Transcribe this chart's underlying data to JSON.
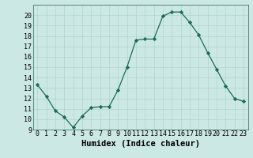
{
  "x": [
    0,
    1,
    2,
    3,
    4,
    5,
    6,
    7,
    8,
    9,
    10,
    11,
    12,
    13,
    14,
    15,
    16,
    17,
    18,
    19,
    20,
    21,
    22,
    23
  ],
  "y": [
    13.3,
    12.2,
    10.8,
    10.2,
    9.2,
    10.3,
    11.1,
    11.2,
    11.2,
    12.8,
    15.0,
    17.6,
    17.7,
    17.7,
    19.9,
    20.3,
    20.3,
    19.3,
    18.1,
    16.4,
    14.8,
    13.2,
    12.0,
    11.7
  ],
  "xlabel": "Humidex (Indice chaleur)",
  "xlim": [
    -0.5,
    23.5
  ],
  "ylim": [
    9,
    21
  ],
  "yticks": [
    9,
    10,
    11,
    12,
    13,
    14,
    15,
    16,
    17,
    18,
    19,
    20
  ],
  "line_color": "#1a6b5a",
  "marker": "D",
  "marker_size": 2.2,
  "bg_color": "#cce8e4",
  "grid_color": "#b0d4ce",
  "tick_fontsize": 6.0,
  "label_fontsize": 7.5
}
